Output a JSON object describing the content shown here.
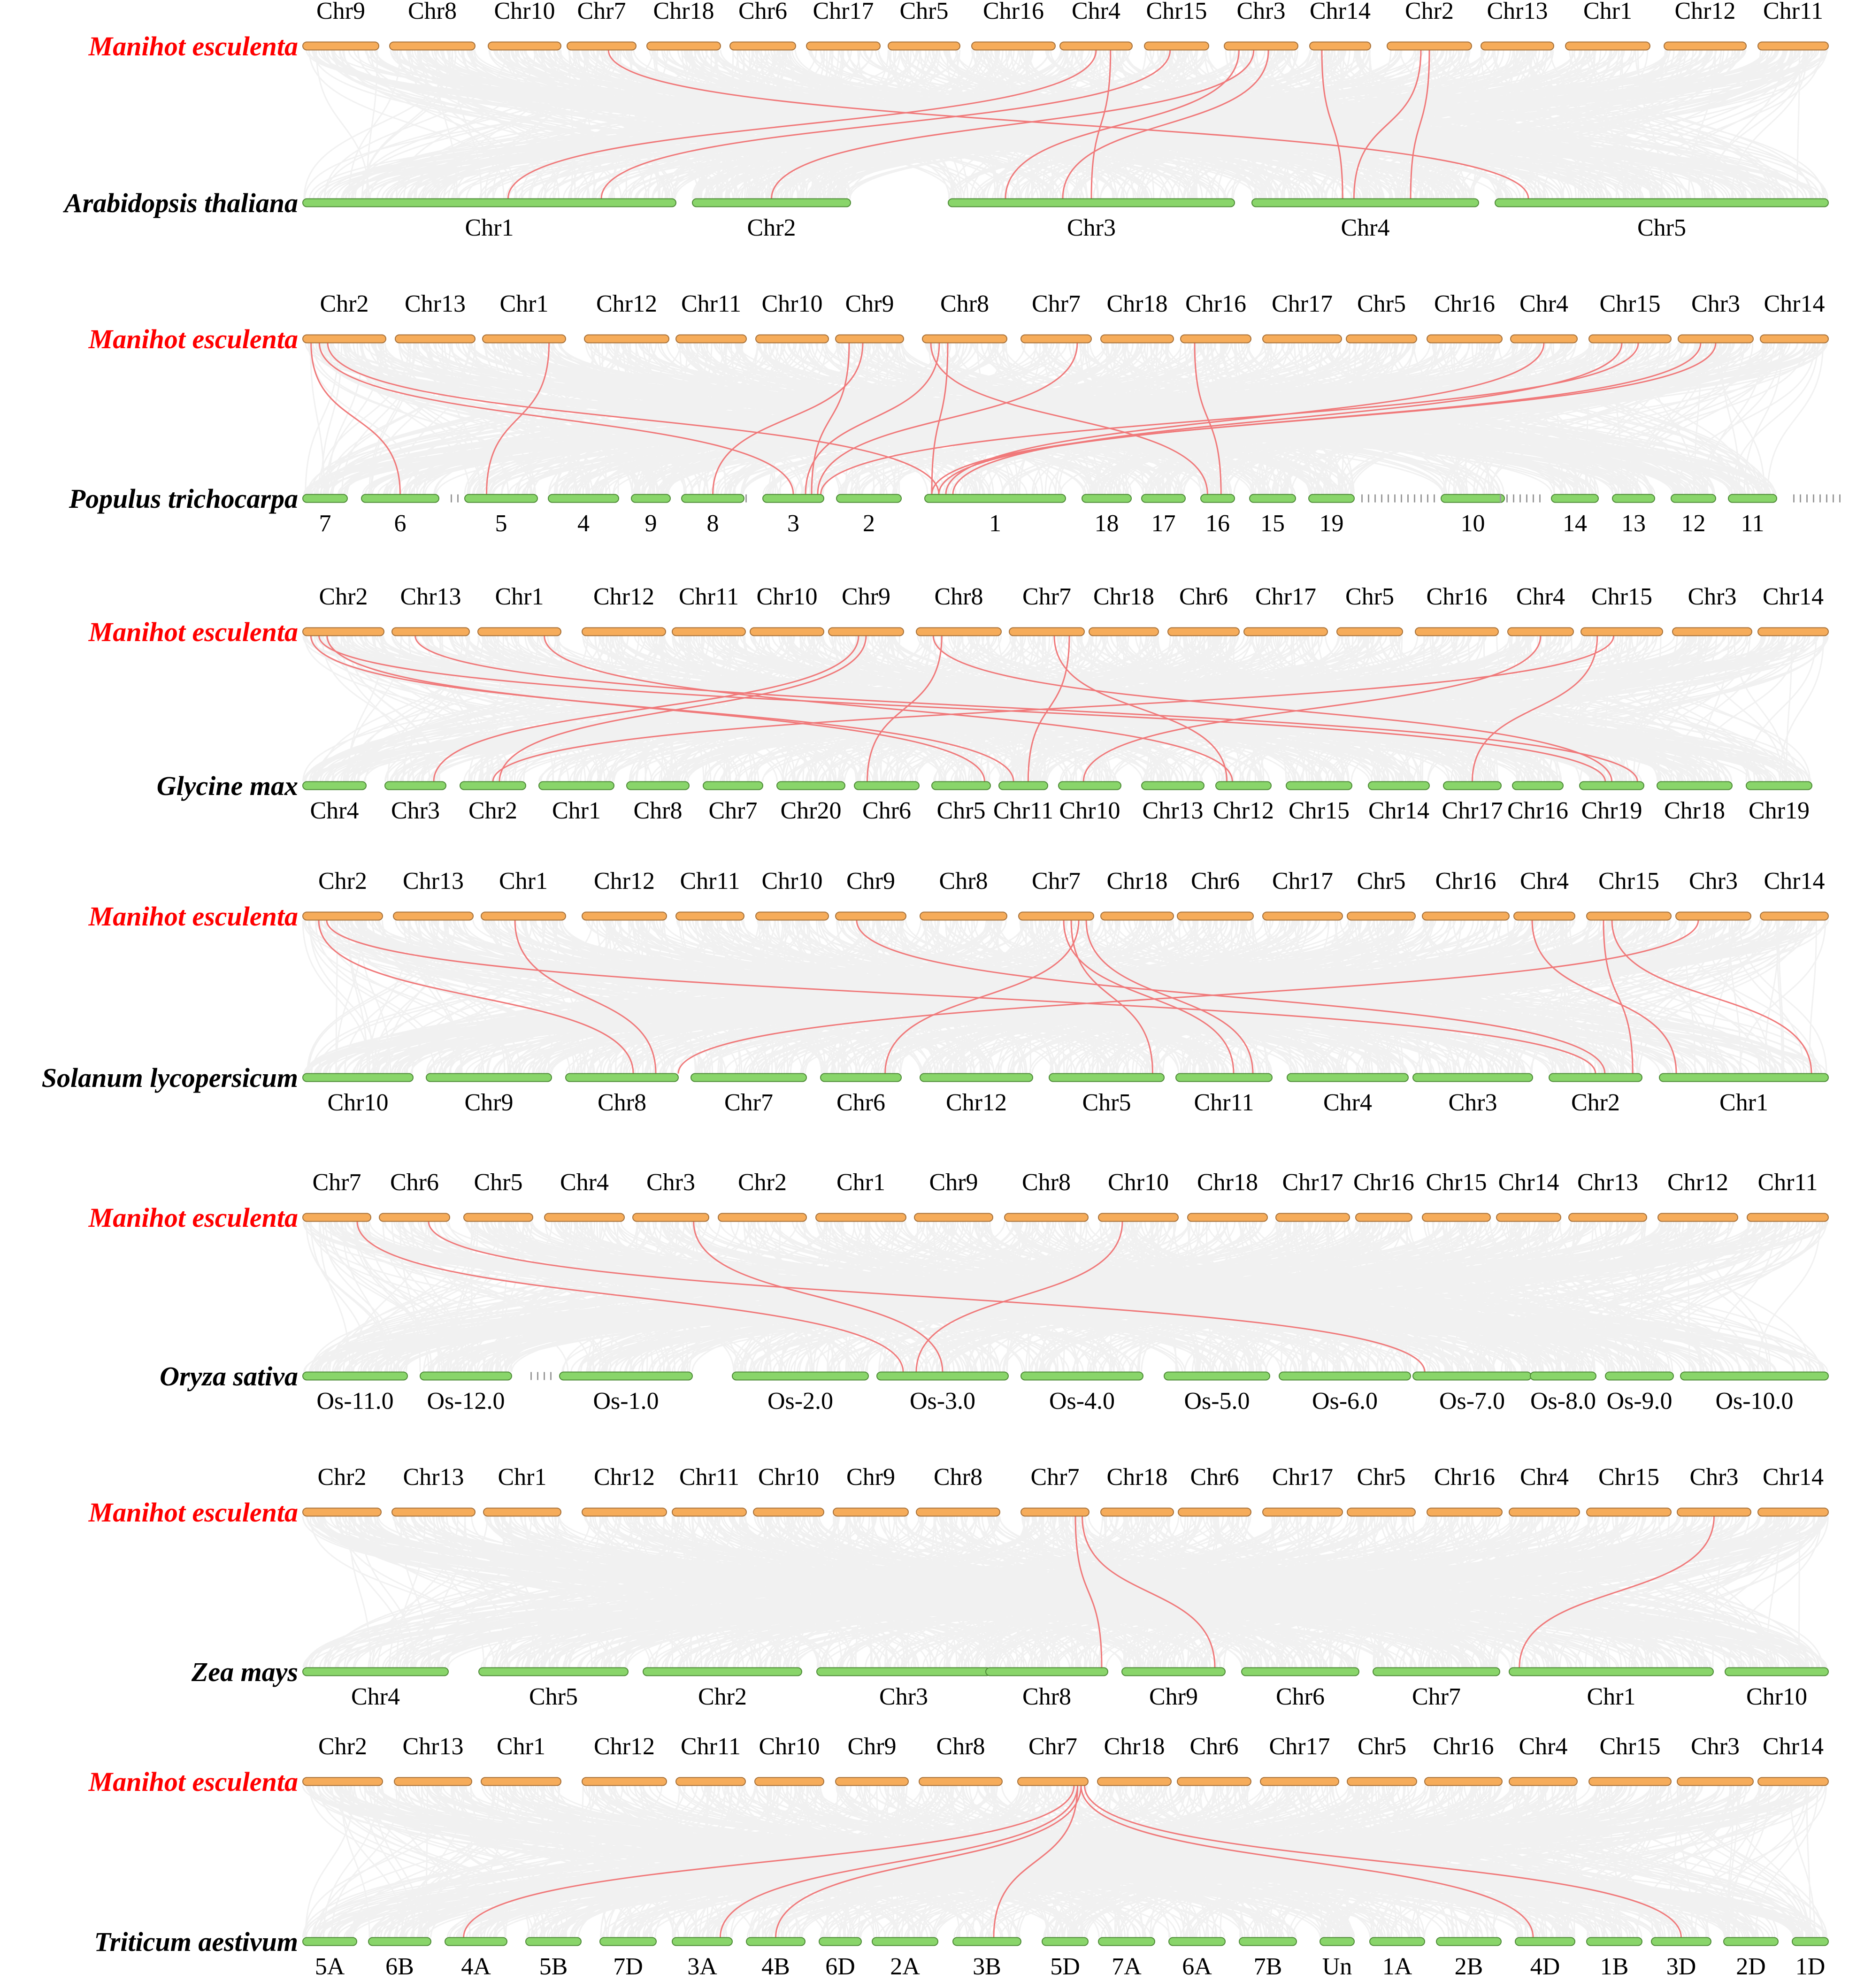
{
  "colors": {
    "manihot_label": "#ff0000",
    "other_label": "#000000",
    "manihot_bar": "#f6ac5a",
    "manihot_bar_stroke": "#a8723a",
    "target_bar": "#89d56a",
    "target_bar_stroke": "#4f8c38",
    "background_link": "#e6e6e6",
    "highlight_link": "#f0797a"
  },
  "panels": [
    {
      "id": "arabidopsis",
      "top_species": "Manihot esculenta",
      "bottom_species": "Arabidopsis thaliana",
      "top": [
        "Chr9",
        "Chr8",
        "Chr10",
        "Chr7",
        "Chr18",
        "Chr6",
        "Chr17",
        "Chr5",
        "Chr16",
        "Chr4",
        "Chr15",
        "Chr3",
        "Chr14",
        "Chr2",
        "Chr13",
        "Chr1",
        "Chr12",
        "Chr11"
      ],
      "bottom": [
        "Chr1",
        "Chr2",
        "Chr3",
        "Chr4",
        "Chr5"
      ],
      "links": [
        [
          "Chr7",
          0.6,
          "Chr5",
          0.1
        ],
        [
          "Chr4",
          0.5,
          "Chr1",
          0.55
        ],
        [
          "Chr4",
          0.7,
          "Chr3",
          0.5
        ],
        [
          "Chr15",
          0.4,
          "Chr1",
          0.8
        ],
        [
          "Chr3",
          0.2,
          "Chr3",
          0.2
        ],
        [
          "Chr3",
          0.4,
          "Chr2",
          0.5
        ],
        [
          "Chr3",
          0.6,
          "Chr3",
          0.4
        ],
        [
          "Chr14",
          0.2,
          "Chr4",
          0.4
        ],
        [
          "Chr2",
          0.5,
          "Chr4",
          0.7
        ],
        [
          "Chr2",
          0.4,
          "Chr4",
          0.45
        ]
      ]
    },
    {
      "id": "populus",
      "top_species": "Manihot esculenta",
      "bottom_species": "Populus trichocarpa",
      "top": [
        "Chr2",
        "Chr13",
        "Chr1",
        "Chr12",
        "Chr11",
        "Chr10",
        "Chr9",
        "Chr8",
        "Chr7",
        "Chr18",
        "Chr16",
        "Chr17",
        "Chr5",
        "Chr16",
        "Chr4",
        "Chr15",
        "Chr3",
        "Chr14"
      ],
      "bottom": [
        "7",
        "6",
        "5",
        "4",
        "9",
        "8",
        "3",
        "2",
        "1",
        "18",
        "17",
        "16",
        "15",
        "19",
        "10",
        "14",
        "13",
        "12",
        "11"
      ],
      "links": [
        [
          "Chr2",
          0.1,
          "6",
          0.5
        ],
        [
          "Chr2",
          0.2,
          "3",
          0.5
        ],
        [
          "Chr2",
          0.3,
          "1",
          0.1
        ],
        [
          "Chr1",
          0.8,
          "5",
          0.3
        ],
        [
          "Chr9",
          0.2,
          "3",
          0.8
        ],
        [
          "Chr9",
          0.4,
          "8",
          0.5
        ],
        [
          "Chr8",
          0.2,
          "3",
          0.7
        ],
        [
          "Chr8",
          0.3,
          "1",
          0.05
        ],
        [
          "Chr8",
          0.1,
          "16",
          0.2
        ],
        [
          "Chr7",
          0.8,
          "3",
          0.9
        ],
        [
          "Chr16",
          0.2,
          "16",
          0.6
        ],
        [
          "Chr4",
          0.5,
          "1",
          0.15
        ],
        [
          "Chr15",
          0.4,
          "1",
          0.2
        ],
        [
          "Chr15",
          0.6,
          "3",
          0.95
        ],
        [
          "Chr3",
          0.3,
          "1",
          0.1
        ],
        [
          "Chr3",
          0.5,
          "1",
          0.05
        ]
      ]
    },
    {
      "id": "glycine",
      "top_species": "Manihot esculenta",
      "bottom_species": "Glycine max",
      "top": [
        "Chr2",
        "Chr13",
        "Chr1",
        "Chr12",
        "Chr11",
        "Chr10",
        "Chr9",
        "Chr8",
        "Chr7",
        "Chr18",
        "Chr6",
        "Chr17",
        "Chr5",
        "Chr16",
        "Chr4",
        "Chr15",
        "Chr3",
        "Chr14"
      ],
      "bottom": [
        "Chr4",
        "Chr3",
        "Chr2",
        "Chr1",
        "Chr8",
        "Chr7",
        "Chr20",
        "Chr6",
        "Chr5",
        "Chr11",
        "Chr10",
        "Chr13",
        "Chr12",
        "Chr15",
        "Chr14",
        "Chr17",
        "Chr16",
        "Chr19",
        "Chr18",
        "Chr19"
      ],
      "links": [
        [
          "Chr2",
          0.1,
          "Chr11",
          0.3
        ],
        [
          "Chr2",
          0.2,
          "Chr19",
          0.4
        ],
        [
          "Chr2",
          0.3,
          "Chr5",
          0.9
        ],
        [
          "Chr13",
          0.3,
          "Chr19",
          0.9
        ],
        [
          "Chr1",
          0.8,
          "Chr12",
          0.3
        ],
        [
          "Chr9",
          0.4,
          "Chr3",
          0.8
        ],
        [
          "Chr9",
          0.5,
          "Chr2",
          0.6
        ],
        [
          "Chr8",
          0.3,
          "Chr6",
          0.2
        ],
        [
          "Chr8",
          0.2,
          "Chr19",
          0.5
        ],
        [
          "Chr7",
          0.8,
          "Chr11",
          0.6
        ],
        [
          "Chr7",
          0.6,
          "Chr12",
          0.2
        ],
        [
          "Chr4",
          0.5,
          "Chr10",
          0.4
        ],
        [
          "Chr15",
          0.2,
          "Chr17",
          0.5
        ],
        [
          "Chr15",
          0.4,
          "Chr2",
          0.5
        ]
      ]
    },
    {
      "id": "solanum",
      "top_species": "Manihot esculenta",
      "bottom_species": "Solanum lycopersicum",
      "top": [
        "Chr2",
        "Chr13",
        "Chr1",
        "Chr12",
        "Chr11",
        "Chr10",
        "Chr9",
        "Chr8",
        "Chr7",
        "Chr18",
        "Chr6",
        "Chr17",
        "Chr5",
        "Chr16",
        "Chr4",
        "Chr15",
        "Chr3",
        "Chr14"
      ],
      "bottom": [
        "Chr10",
        "Chr9",
        "Chr8",
        "Chr7",
        "Chr6",
        "Chr12",
        "Chr5",
        "Chr11",
        "Chr4",
        "Chr3",
        "Chr2",
        "Chr1"
      ],
      "links": [
        [
          "Chr2",
          0.2,
          "Chr8",
          0.6
        ],
        [
          "Chr2",
          0.3,
          "Chr2",
          0.5
        ],
        [
          "Chr1",
          0.4,
          "Chr8",
          0.8
        ],
        [
          "Chr9",
          0.3,
          "Chr2",
          0.6
        ],
        [
          "Chr7",
          0.8,
          "Chr6",
          0.8
        ],
        [
          "Chr7",
          0.7,
          "Chr5",
          0.9
        ],
        [
          "Chr7",
          0.9,
          "Chr11",
          0.8
        ],
        [
          "Chr7",
          0.6,
          "Chr11",
          0.6
        ],
        [
          "Chr4",
          0.3,
          "Chr1",
          0.1
        ],
        [
          "Chr15",
          0.3,
          "Chr1",
          0.9
        ],
        [
          "Chr15",
          0.2,
          "Chr2",
          0.9
        ],
        [
          "Chr3",
          0.3,
          "Chr8",
          1.0
        ]
      ]
    },
    {
      "id": "oryza",
      "top_species": "Manihot esculenta",
      "bottom_species": "Oryza sativa",
      "top": [
        "Chr7",
        "Chr6",
        "Chr5",
        "Chr4",
        "Chr3",
        "Chr2",
        "Chr1",
        "Chr9",
        "Chr8",
        "Chr10",
        "Chr18",
        "Chr17",
        "Chr16",
        "Chr15",
        "Chr14",
        "Chr13",
        "Chr12",
        "Chr11"
      ],
      "bottom": [
        "Os-11.0",
        "Os-12.0",
        "Os-1.0",
        "Os-2.0",
        "Os-3.0",
        "Os-4.0",
        "Os-5.0",
        "Os-6.0",
        "Os-7.0",
        "Os-8.0",
        "Os-9.0",
        "Os-10.0"
      ],
      "links": [
        [
          "Chr7",
          0.8,
          "Os-3.0",
          0.2
        ],
        [
          "Chr6",
          0.7,
          "Os-7.0",
          0.1
        ],
        [
          "Chr3",
          0.8,
          "Os-3.0",
          0.5
        ],
        [
          "Chr10",
          0.3,
          "Os-3.0",
          0.3
        ]
      ]
    },
    {
      "id": "zea",
      "top_species": "Manihot esculenta",
      "bottom_species": "Zea mays",
      "top": [
        "Chr2",
        "Chr13",
        "Chr1",
        "Chr12",
        "Chr11",
        "Chr10",
        "Chr9",
        "Chr8",
        "Chr7",
        "Chr18",
        "Chr6",
        "Chr17",
        "Chr5",
        "Chr16",
        "Chr4",
        "Chr15",
        "Chr3",
        "Chr14"
      ],
      "bottom": [
        "Chr4",
        "Chr5",
        "Chr2",
        "Chr3",
        "Chr8",
        "Chr9",
        "Chr6",
        "Chr7",
        "Chr1",
        "Chr10"
      ],
      "links": [
        [
          "Chr7",
          0.8,
          "Chr8",
          0.95
        ],
        [
          "Chr7",
          0.9,
          "Chr9",
          0.9
        ],
        [
          "Chr3",
          0.5,
          "Chr1",
          0.05
        ]
      ]
    },
    {
      "id": "triticum",
      "top_species": "Manihot esculenta",
      "bottom_species": "Triticum aestivum",
      "top": [
        "Chr2",
        "Chr13",
        "Chr1",
        "Chr12",
        "Chr11",
        "Chr10",
        "Chr9",
        "Chr8",
        "Chr7",
        "Chr18",
        "Chr6",
        "Chr17",
        "Chr5",
        "Chr16",
        "Chr4",
        "Chr15",
        "Chr3",
        "Chr14"
      ],
      "bottom": [
        "5A",
        "6B",
        "4A",
        "5B",
        "7D",
        "3A",
        "4B",
        "6D",
        "2A",
        "3B",
        "5D",
        "7A",
        "6A",
        "7B",
        "Un",
        "1A",
        "2B",
        "4D",
        "1B",
        "3D",
        "2D",
        "1D"
      ],
      "links": [
        [
          "Chr7",
          0.8,
          "4A",
          0.3
        ],
        [
          "Chr7",
          0.85,
          "3A",
          0.8
        ],
        [
          "Chr7",
          0.9,
          "4B",
          0.5
        ],
        [
          "Chr7",
          0.85,
          "3B",
          0.6
        ],
        [
          "Chr7",
          0.9,
          "4D",
          0.3
        ],
        [
          "Chr7",
          0.95,
          "3D",
          0.5
        ]
      ]
    }
  ]
}
